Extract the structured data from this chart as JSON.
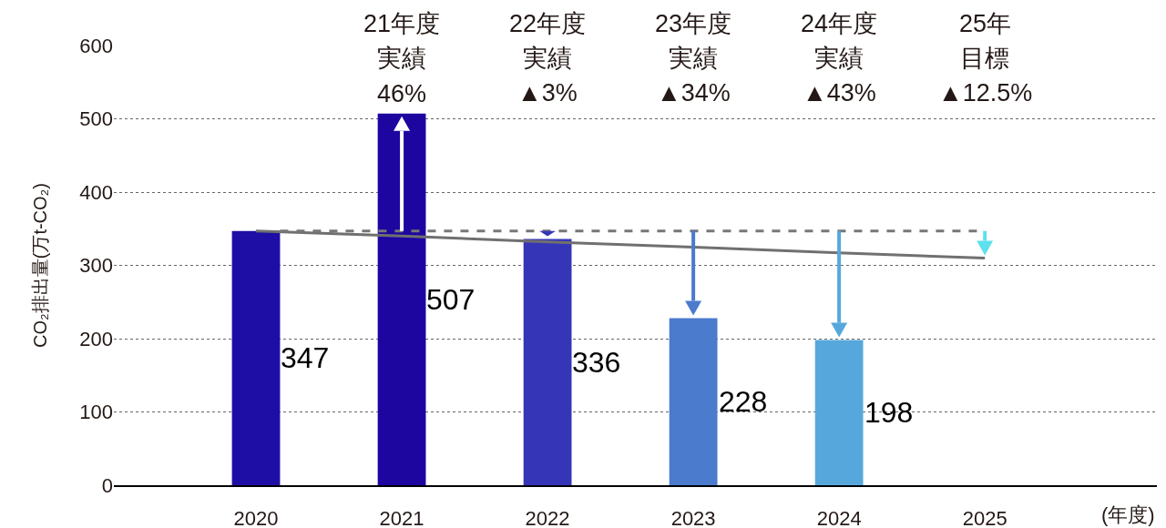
{
  "chart_data": {
    "type": "bar",
    "xlabel": "(年度)",
    "ylabel": "CO₂排出量(万t-CO₂)",
    "categories": [
      "2020",
      "2021",
      "2022",
      "2023",
      "2024",
      "2025"
    ],
    "series": [
      {
        "colors": [
          "#1f0ea5",
          "#1d06a0",
          "#3535b8",
          "#4a7bcd",
          "#56a8dc",
          "#5fe0ee"
        ],
        "values": [
          347,
          507,
          336,
          228,
          198,
          null
        ],
        "value_labels": [
          "347",
          "507",
          "336",
          "228",
          "198",
          null
        ]
      },
      {
        "type": "line",
        "color": "#707070",
        "values": [
          347,
          340,
          332,
          325,
          317,
          310
        ]
      }
    ],
    "ylim": [
      0,
      600
    ],
    "yticks": [
      0,
      100,
      200,
      300,
      400,
      500,
      600
    ],
    "grid": "y",
    "ref_lines": [
      {
        "axis": "y",
        "value": 347,
        "color": "#777777",
        "line_style": "dashed"
      }
    ],
    "annotations": [
      "21年度",
      "実績",
      {
        "text": "46%",
        "x": "2021",
        "y": 507
      },
      "22年度",
      "実績",
      "▲3%",
      "23年度",
      "実績",
      "▲34%",
      "24年度",
      "実績",
      "▲43%",
      "25年",
      "目標",
      "▲12.5%"
    ]
  }
}
